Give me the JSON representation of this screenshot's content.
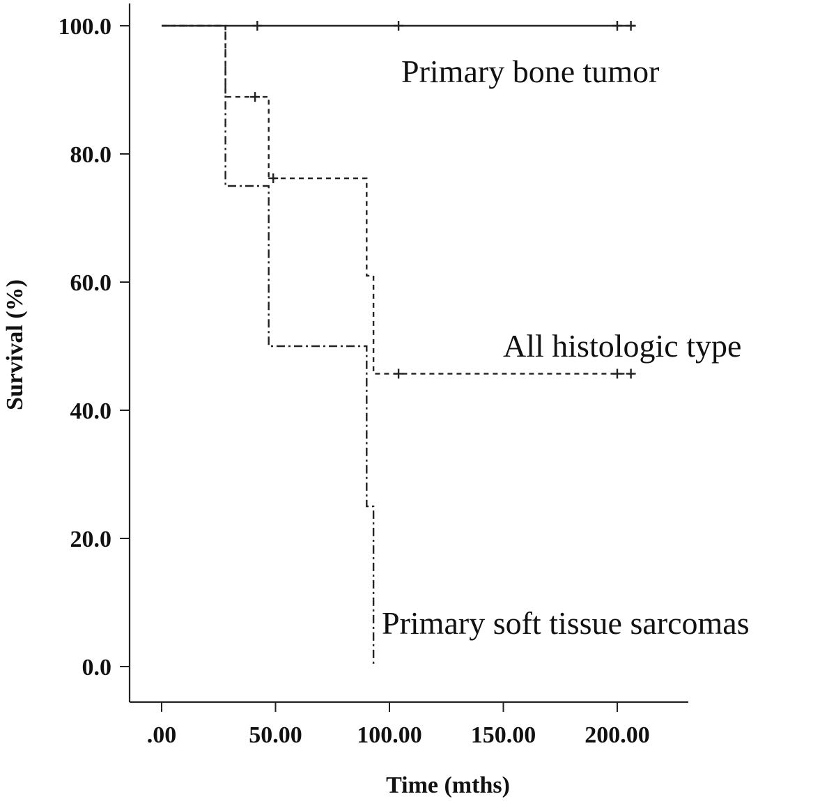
{
  "chart_data": {
    "type": "line",
    "title": "",
    "xlabel": "Time (mths)",
    "ylabel": "Survival (%)",
    "xlim": [
      -14,
      232
    ],
    "ylim": [
      -7,
      103
    ],
    "x_ticks": [
      0,
      50,
      100,
      150,
      200
    ],
    "x_tick_labels": [
      ".00",
      "50.00",
      "100.00",
      "150.00",
      "200.00"
    ],
    "y_ticks": [
      0,
      20,
      40,
      60,
      80,
      100
    ],
    "y_tick_labels": [
      "0.0",
      "20.0",
      "40.0",
      "60.0",
      "80.0",
      "100.0"
    ],
    "grid": false,
    "legend": "none",
    "series": [
      {
        "name": "Primary bone tumor",
        "style": "solid",
        "steps": [
          [
            0,
            100
          ],
          [
            208,
            100
          ]
        ],
        "censored": [
          [
            42,
            100
          ],
          [
            104,
            100
          ],
          [
            200,
            100
          ],
          [
            206,
            100
          ]
        ]
      },
      {
        "name": "All histologic type",
        "style": "dashed",
        "steps": [
          [
            0,
            100
          ],
          [
            28,
            100
          ],
          [
            28,
            88.9
          ],
          [
            47,
            88.9
          ],
          [
            47,
            76.2
          ],
          [
            90,
            76.2
          ],
          [
            90,
            61
          ],
          [
            93,
            61
          ],
          [
            93,
            45.7
          ],
          [
            208,
            45.7
          ]
        ],
        "censored": [
          [
            41,
            88.9
          ],
          [
            49,
            76.2
          ],
          [
            104,
            45.7
          ],
          [
            200,
            45.7
          ],
          [
            206,
            45.7
          ]
        ]
      },
      {
        "name": "Primary soft tissue sarcomas",
        "style": "dashdot",
        "steps": [
          [
            0,
            100
          ],
          [
            28,
            100
          ],
          [
            28,
            75
          ],
          [
            47,
            75
          ],
          [
            47,
            50
          ],
          [
            90,
            50
          ],
          [
            90,
            25
          ],
          [
            93,
            25
          ],
          [
            93,
            0
          ]
        ],
        "censored": []
      }
    ],
    "labels": [
      {
        "text": "Primary bone tumor",
        "series": 0
      },
      {
        "text": "All histologic type",
        "series": 1
      },
      {
        "text": "Primary soft tissue sarcomas",
        "series": 2
      }
    ]
  }
}
